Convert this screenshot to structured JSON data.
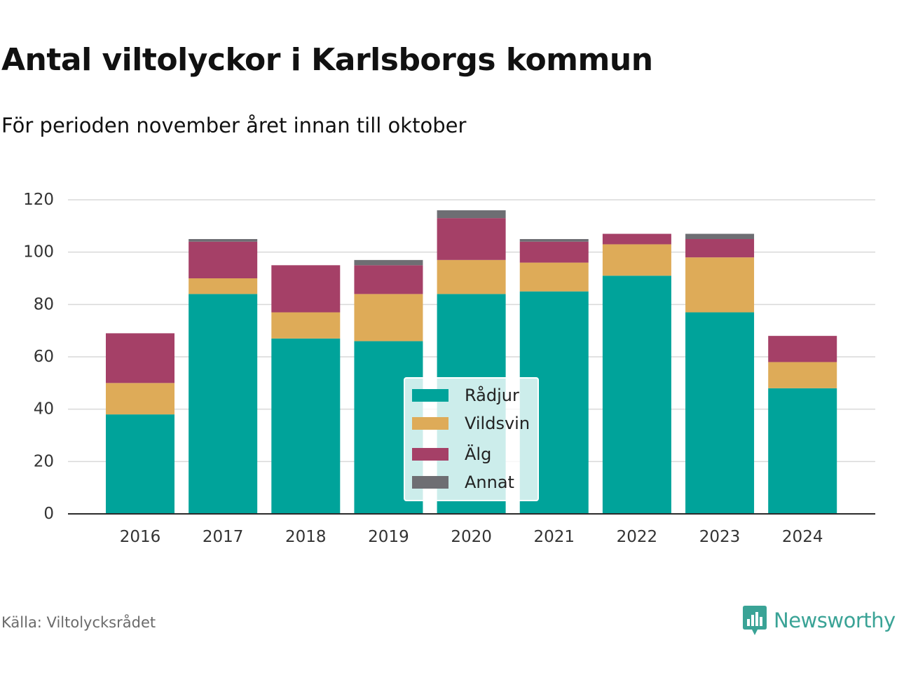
{
  "chart_data": {
    "type": "bar",
    "stacked": true,
    "title": "Antal viltolyckor i Karlsborgs kommun",
    "subtitle": "För perioden november året innan till oktober",
    "categories": [
      "2016",
      "2017",
      "2018",
      "2019",
      "2020",
      "2021",
      "2022",
      "2023",
      "2024"
    ],
    "series": [
      {
        "name": "Rådjur",
        "color": "#00a39a",
        "values": [
          38,
          84,
          67,
          66,
          84,
          85,
          91,
          77,
          48
        ]
      },
      {
        "name": "Vildsvin",
        "color": "#deab58",
        "values": [
          12,
          6,
          10,
          18,
          13,
          11,
          12,
          21,
          10
        ]
      },
      {
        "name": "Älg",
        "color": "#a54067",
        "values": [
          19,
          14,
          18,
          11,
          16,
          8,
          4,
          7,
          10
        ]
      },
      {
        "name": "Annat",
        "color": "#6e6e73",
        "values": [
          0,
          1,
          0,
          2,
          3,
          1,
          0,
          2,
          0
        ]
      }
    ],
    "yticks": [
      0,
      20,
      40,
      60,
      80,
      100,
      120
    ],
    "ylim": [
      0,
      120
    ],
    "xlabel": "",
    "ylabel": "",
    "grid": true,
    "legend_position": "bottom-center"
  },
  "source": "Källa: Viltolycksrådet",
  "brand": {
    "name": "Newsworthy",
    "icon": "newsworthy-logo-icon",
    "color": "#3aa396"
  }
}
